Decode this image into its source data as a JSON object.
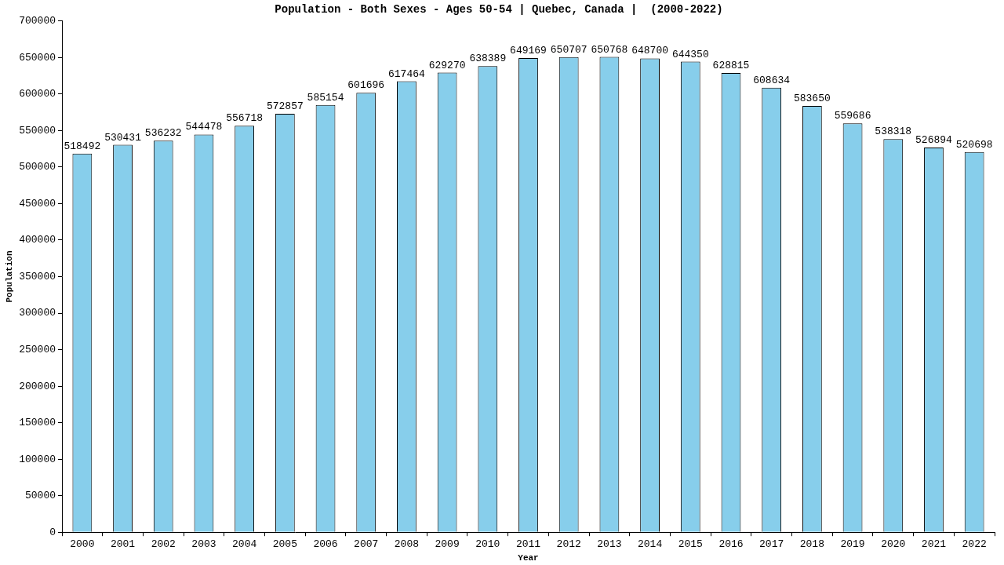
{
  "chart_data": {
    "type": "bar",
    "title": "Population - Both Sexes - Ages 50-54 | Quebec, Canada |  (2000-2022)",
    "x_label": "Year",
    "y_label": "Population",
    "categories": [
      "2000",
      "2001",
      "2002",
      "2003",
      "2004",
      "2005",
      "2006",
      "2007",
      "2008",
      "2009",
      "2010",
      "2011",
      "2012",
      "2013",
      "2014",
      "2015",
      "2016",
      "2017",
      "2018",
      "2019",
      "2020",
      "2021",
      "2022"
    ],
    "values": [
      518492,
      530431,
      536232,
      544478,
      556718,
      572857,
      585154,
      601696,
      617464,
      629270,
      638389,
      649169,
      650707,
      650768,
      648700,
      644350,
      628815,
      608634,
      583650,
      559686,
      538318,
      526894,
      520698
    ],
    "color": "#87ceeb",
    "ylim": [
      0,
      700000
    ],
    "yticks": [
      0,
      50000,
      100000,
      150000,
      200000,
      250000,
      300000,
      350000,
      400000,
      450000,
      500000,
      550000,
      600000,
      650000,
      700000
    ],
    "grid": false,
    "data_labels": true
  }
}
